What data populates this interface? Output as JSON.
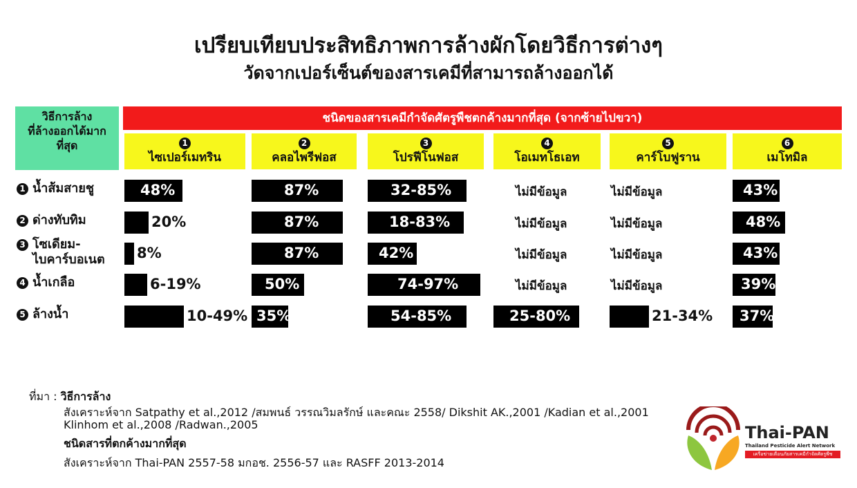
{
  "title": "เปรียบเทียบประสิทธิภาพการล้างผักโดยวิธีการต่างๆ",
  "subtitle": "วัดจากเปอร์เซ็นต์ของสารเคมีที่สามารถล้างออกได้",
  "method_header": [
    "วิธีการล้าง",
    "ที่ล้างออกได้มาก",
    "ที่สุด"
  ],
  "chemical_header": "ชนิดของสารเคมีกำจัดศัตรูพืชตกค้างมากที่สุด (จากซ้ายไปขวา)",
  "no_data": "ไม่มีข้อมูล",
  "colors": {
    "method_header": "#5fe0a3",
    "chemical_header": "#f21b1b",
    "chemical_cells": "#f7f71c",
    "bars": "#000000"
  },
  "chart_data": {
    "type": "table",
    "categories": [
      "ไซเปอร์เมทริน",
      "คลอไพรีฟอส",
      "โปรฟีโนฟอส",
      "โอเมทโธเอท",
      "คาร์โบฟูราน",
      "เมโทมิล"
    ],
    "category_numbers": [
      "1",
      "2",
      "3",
      "4",
      "5",
      "6"
    ],
    "rows": [
      {
        "num": "1",
        "label": [
          "น้ำส้มสายชู"
        ],
        "values": [
          "48%",
          "87%",
          "32-85%",
          null,
          null,
          "43%"
        ],
        "bar_levels": [
          48,
          87,
          85,
          null,
          null,
          43
        ]
      },
      {
        "num": "2",
        "label": [
          "ด่างทับทิม"
        ],
        "values": [
          "20%",
          "87%",
          "18-83%",
          null,
          null,
          "48%"
        ],
        "bar_levels": [
          20,
          87,
          83,
          null,
          null,
          48
        ]
      },
      {
        "num": "3",
        "label": [
          "โซเดียม-",
          "ไบคาร์บอเนต"
        ],
        "values": [
          "8%",
          "87%",
          "42%",
          null,
          null,
          "43%"
        ],
        "bar_levels": [
          8,
          87,
          42,
          null,
          null,
          43
        ]
      },
      {
        "num": "4",
        "label": [
          "น้ำเกลือ"
        ],
        "values": [
          "6-19%",
          "50%",
          "74-97%",
          null,
          null,
          "39%"
        ],
        "bar_levels": [
          19,
          50,
          97,
          null,
          null,
          39
        ]
      },
      {
        "num": "5",
        "label": [
          "ล้างน้ำ"
        ],
        "values": [
          "10-49%",
          "35%",
          "54-85%",
          "25-80%",
          "21-34%",
          "37%"
        ],
        "bar_levels": [
          49,
          35,
          85,
          80,
          34,
          37
        ]
      }
    ]
  },
  "source": {
    "prefix": "ที่มา :",
    "method_title": "วิธีการล้าง",
    "method_line1": "สังเคราะห์จาก Satpathy et al.,2012 /สมพนธ์ วรรณวิมลรักษ์ และคณะ 2558/ Dikshit AK.,2001 /Kadian et al.,2001",
    "method_line2": "Klinhom et al.,2008 /Radwan.,2005",
    "chem_title": "ชนิดสารที่ตกค้างมากที่สุด",
    "chem_line": "สังเคราะห์จาก Thai-PAN 2557-58 มกอช. 2556-57 และ RASFF 2013-2014"
  },
  "logo": {
    "name": "Thai-PAN",
    "tagline": "Thailand Pesticide Alert Network",
    "thai_tagline": "เครือข่ายเตือนภัยสารเคมีกำจัดศัตรูพืช"
  }
}
